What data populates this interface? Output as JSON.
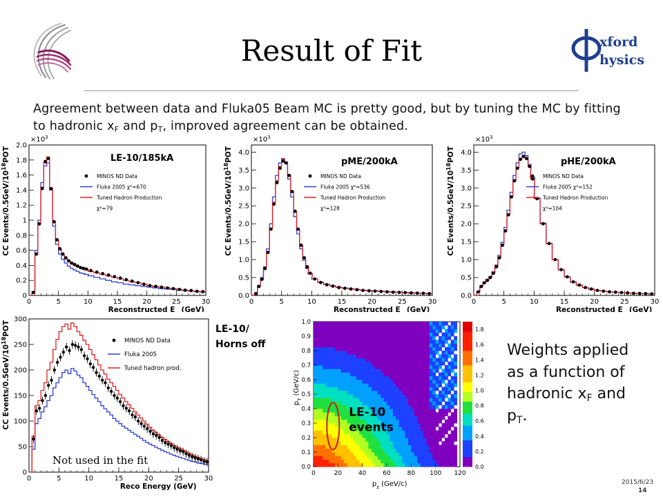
{
  "slide": {
    "title": "Result of Fit",
    "intro": {
      "part1": "Agreement between data and Fluka05 Beam MC is pretty good, but by tuning the MC by fitting to hadronic x",
      "sub1": "F",
      "part2": " and p",
      "sub2": "T",
      "part3": ", improved agreement can be obtained."
    },
    "side_note": {
      "part1": "Weights applied as a function of hadronic x",
      "sub1": "F",
      "part2": " and p",
      "sub2": "T",
      "part3": "."
    },
    "horns_label_line1": "LE-10/",
    "horns_label_line2": "Horns off",
    "date": "2015/6/23",
    "page": "14",
    "logo": {
      "text_line1": "xford",
      "text_line2": "hysics",
      "accent": "#1f3f8f"
    }
  },
  "colors": {
    "data": "#000000",
    "fluka": "#2f3fd0",
    "tuned": "#e02020"
  },
  "chart_data": [
    {
      "id": "le10",
      "type": "line",
      "label": "LE-10/185kA",
      "xlabel": "Reconstructed E",
      "xlabel_sub": "ν",
      "xlabel_unit": " (GeV)",
      "ylabel": "CC Events/0.5GeV/10",
      "ylabel_sup": "18",
      "ylabel_tail": "POT",
      "exponent": "×10",
      "exponent_sup": "3",
      "xlim": [
        0,
        30
      ],
      "ylim": [
        0,
        2.0
      ],
      "xticks": [
        0,
        5,
        10,
        15,
        20,
        25,
        30
      ],
      "yticks": [
        0,
        0.2,
        0.4,
        0.6,
        0.8,
        1.0,
        1.2,
        1.4,
        1.6,
        1.8,
        2.0
      ],
      "ytick_labels": [
        "0",
        "0.2",
        "0.4",
        "0.6",
        "0.8",
        "1",
        "1.2",
        "1.4",
        "1.6",
        "1.8",
        "2.0"
      ],
      "legend": [
        "MINOS ND Data",
        "Fluka 2005 χ²=670",
        "Tuned Hadron Production",
        "χ²=79"
      ],
      "x": [
        0.25,
        0.75,
        1.25,
        1.75,
        2.25,
        2.75,
        3.25,
        3.75,
        4.25,
        4.75,
        5.25,
        5.75,
        6.25,
        6.75,
        7.25,
        7.75,
        8.25,
        8.75,
        9.25,
        9.75,
        10.5,
        11.5,
        12.5,
        13.5,
        14.5,
        15.5,
        16.5,
        17.5,
        18.5,
        19.5,
        20.5,
        21.5,
        22.5,
        23.5,
        24.5,
        25.5,
        26.5,
        27.5,
        28.5,
        29.5
      ],
      "series": [
        {
          "name": "MINOS ND Data",
          "values": [
            0.0,
            0.04,
            0.55,
            0.95,
            1.42,
            1.78,
            1.82,
            1.42,
            0.98,
            0.74,
            0.62,
            0.55,
            0.5,
            0.46,
            0.43,
            0.41,
            0.39,
            0.37,
            0.36,
            0.35,
            0.33,
            0.31,
            0.29,
            0.27,
            0.25,
            0.23,
            0.21,
            0.19,
            0.17,
            0.15,
            0.13,
            0.12,
            0.11,
            0.1,
            0.09,
            0.08,
            0.07,
            0.065,
            0.055,
            0.05
          ]
        },
        {
          "name": "Fluka 2005 χ²=670",
          "values": [
            0.0,
            0.05,
            0.6,
            1.0,
            1.5,
            1.72,
            1.76,
            1.4,
            0.92,
            0.68,
            0.55,
            0.48,
            0.43,
            0.39,
            0.36,
            0.34,
            0.32,
            0.3,
            0.29,
            0.28,
            0.26,
            0.24,
            0.22,
            0.2,
            0.18,
            0.17,
            0.15,
            0.14,
            0.13,
            0.12,
            0.11,
            0.1,
            0.09,
            0.085,
            0.08,
            0.07,
            0.065,
            0.06,
            0.05,
            0.045
          ]
        },
        {
          "name": "Tuned Hadron Production",
          "values": [
            0.0,
            0.04,
            0.56,
            0.96,
            1.44,
            1.76,
            1.84,
            1.42,
            0.97,
            0.73,
            0.61,
            0.54,
            0.49,
            0.45,
            0.42,
            0.4,
            0.38,
            0.37,
            0.35,
            0.34,
            0.32,
            0.3,
            0.28,
            0.26,
            0.24,
            0.22,
            0.2,
            0.18,
            0.17,
            0.15,
            0.13,
            0.12,
            0.11,
            0.1,
            0.09,
            0.08,
            0.07,
            0.06,
            0.055,
            0.05
          ]
        }
      ]
    },
    {
      "id": "pme",
      "type": "line",
      "label": "pME/200kA",
      "xlabel": "Reconstructed E",
      "xlabel_sub": "ν",
      "xlabel_unit": " (GeV)",
      "ylabel": "CC Events/0.5GeV/10",
      "ylabel_sup": "18",
      "ylabel_tail": "POT",
      "exponent": "×10",
      "exponent_sup": "3",
      "xlim": [
        0,
        30
      ],
      "ylim": [
        0,
        4.2
      ],
      "xticks": [
        0,
        5,
        10,
        15,
        20,
        25,
        30
      ],
      "yticks": [
        0,
        0.5,
        1.0,
        1.5,
        2.0,
        2.5,
        3.0,
        3.5,
        4.0
      ],
      "ytick_labels": [
        "0.0",
        "0.5",
        "1.0",
        "1.5",
        "2.0",
        "2.5",
        "3.0",
        "3.5",
        "4.0"
      ],
      "legend": [
        "MINOS ND Data",
        "Fluka 2005 χ²=536",
        "Tuned Hadron Production",
        "χ²=128"
      ],
      "x": [
        0.25,
        0.75,
        1.25,
        1.75,
        2.25,
        2.75,
        3.25,
        3.75,
        4.25,
        4.75,
        5.25,
        5.75,
        6.25,
        6.75,
        7.25,
        7.75,
        8.25,
        8.75,
        9.25,
        9.75,
        10.5,
        11.5,
        12.5,
        13.5,
        14.5,
        15.5,
        16.5,
        17.5,
        18.5,
        19.5,
        20.5,
        21.5,
        22.5,
        23.5,
        24.5,
        25.5,
        26.5,
        27.5,
        28.5,
        29.5
      ],
      "series": [
        {
          "name": "MINOS ND Data",
          "values": [
            0.0,
            0.05,
            0.25,
            0.45,
            0.75,
            1.2,
            1.85,
            2.55,
            3.15,
            3.55,
            3.75,
            3.7,
            3.35,
            2.9,
            2.35,
            1.85,
            1.4,
            1.05,
            0.8,
            0.62,
            0.46,
            0.36,
            0.3,
            0.26,
            0.22,
            0.2,
            0.18,
            0.16,
            0.14,
            0.13,
            0.12,
            0.11,
            0.1,
            0.09,
            0.085,
            0.08,
            0.07,
            0.065,
            0.06,
            0.05
          ]
        },
        {
          "name": "Fluka 2005 χ²=536",
          "values": [
            0.0,
            0.06,
            0.28,
            0.5,
            0.8,
            1.3,
            2.0,
            2.75,
            3.35,
            3.7,
            3.82,
            3.68,
            3.25,
            2.75,
            2.2,
            1.72,
            1.3,
            0.98,
            0.75,
            0.6,
            0.46,
            0.37,
            0.31,
            0.27,
            0.23,
            0.21,
            0.19,
            0.17,
            0.15,
            0.14,
            0.13,
            0.12,
            0.11,
            0.1,
            0.09,
            0.085,
            0.08,
            0.07,
            0.065,
            0.06
          ]
        },
        {
          "name": "Tuned Hadron Production",
          "values": [
            0.0,
            0.05,
            0.26,
            0.46,
            0.76,
            1.22,
            1.88,
            2.6,
            3.2,
            3.6,
            3.8,
            3.72,
            3.36,
            2.9,
            2.34,
            1.84,
            1.39,
            1.04,
            0.79,
            0.61,
            0.46,
            0.36,
            0.3,
            0.26,
            0.22,
            0.2,
            0.18,
            0.16,
            0.14,
            0.13,
            0.12,
            0.11,
            0.1,
            0.09,
            0.085,
            0.08,
            0.07,
            0.065,
            0.06,
            0.05
          ]
        }
      ]
    },
    {
      "id": "phe",
      "type": "line",
      "label": "pHE/200kA",
      "xlabel": "Reconstructed E",
      "xlabel_sub": "ν",
      "xlabel_unit": " (GeV)",
      "ylabel": "CC Events/0.5GeV/10",
      "ylabel_sup": "18",
      "ylabel_tail": "POT",
      "exponent": "×10",
      "exponent_sup": "3",
      "xlim": [
        0,
        30
      ],
      "ylim": [
        0,
        4.2
      ],
      "xticks": [
        0,
        5,
        10,
        15,
        20,
        25,
        30
      ],
      "yticks": [
        0,
        0.5,
        1.0,
        1.5,
        2.0,
        2.5,
        3.0,
        3.5,
        4.0
      ],
      "ytick_labels": [
        "0.0",
        "0.5",
        "1.0",
        "1.5",
        "2.0",
        "2.5",
        "3.0",
        "3.5",
        "4.0"
      ],
      "legend": [
        "MINOS ND Data",
        "Fluka 2005 χ²=152",
        "Tuned Hadron Production",
        "χ²=104"
      ],
      "x": [
        0.25,
        0.75,
        1.25,
        1.75,
        2.25,
        2.75,
        3.25,
        3.75,
        4.25,
        4.75,
        5.25,
        5.75,
        6.25,
        6.75,
        7.25,
        7.75,
        8.25,
        8.75,
        9.25,
        9.75,
        10.5,
        11.5,
        12.5,
        13.5,
        14.5,
        15.5,
        16.5,
        17.5,
        18.5,
        19.5,
        20.5,
        21.5,
        22.5,
        23.5,
        24.5,
        25.5,
        26.5,
        27.5,
        28.5,
        29.5
      ],
      "series": [
        {
          "name": "MINOS ND Data",
          "values": [
            0.0,
            0.1,
            0.25,
            0.35,
            0.42,
            0.5,
            0.62,
            0.8,
            1.05,
            1.4,
            1.8,
            2.25,
            2.75,
            3.2,
            3.55,
            3.8,
            3.88,
            3.82,
            3.6,
            3.25,
            2.7,
            2.0,
            1.45,
            1.0,
            0.72,
            0.52,
            0.38,
            0.29,
            0.22,
            0.18,
            0.14,
            0.12,
            0.1,
            0.09,
            0.08,
            0.07,
            0.06,
            0.055,
            0.05,
            0.045
          ]
        },
        {
          "name": "Fluka 2005 χ²=152",
          "values": [
            0.0,
            0.11,
            0.27,
            0.37,
            0.45,
            0.53,
            0.66,
            0.85,
            1.12,
            1.48,
            1.9,
            2.38,
            2.88,
            3.35,
            3.7,
            3.95,
            4.0,
            3.9,
            3.66,
            3.3,
            2.72,
            2.02,
            1.45,
            1.0,
            0.71,
            0.51,
            0.37,
            0.28,
            0.22,
            0.17,
            0.14,
            0.12,
            0.1,
            0.09,
            0.08,
            0.07,
            0.06,
            0.055,
            0.05,
            0.045
          ]
        },
        {
          "name": "Tuned Hadron Production",
          "values": [
            0.0,
            0.1,
            0.25,
            0.35,
            0.43,
            0.51,
            0.63,
            0.81,
            1.06,
            1.42,
            1.82,
            2.28,
            2.78,
            3.22,
            3.58,
            3.82,
            3.9,
            3.83,
            3.6,
            3.26,
            2.7,
            2.0,
            1.44,
            1.0,
            0.72,
            0.52,
            0.38,
            0.29,
            0.22,
            0.18,
            0.14,
            0.12,
            0.1,
            0.09,
            0.08,
            0.07,
            0.06,
            0.055,
            0.05,
            0.045
          ]
        }
      ]
    },
    {
      "id": "horns",
      "type": "line",
      "xlabel": "Reco Energy (GeV)",
      "ylabel": "CC Events/0.5GeV/10",
      "ylabel_sup": "18",
      "ylabel_tail": "POT",
      "xlim": [
        0,
        30
      ],
      "ylim": [
        0,
        300
      ],
      "xticks": [
        0,
        5,
        10,
        15,
        20,
        25,
        30
      ],
      "yticks": [
        0,
        50,
        100,
        150,
        200,
        250,
        300
      ],
      "ytick_labels": [
        "0",
        "50",
        "100",
        "150",
        "200",
        "250",
        "300"
      ],
      "legend": [
        "MINOS ND Data",
        "Fluka 2005",
        "Tuned hadron prod."
      ],
      "annotation": "Not used in the fit",
      "x": [
        0.25,
        0.75,
        1.25,
        1.75,
        2.25,
        2.75,
        3.25,
        3.75,
        4.25,
        4.75,
        5.25,
        5.75,
        6.25,
        6.75,
        7.25,
        7.75,
        8.25,
        8.75,
        9.25,
        9.75,
        10.25,
        10.75,
        11.25,
        11.75,
        12.25,
        12.75,
        13.25,
        13.75,
        14.25,
        14.75,
        15.25,
        15.75,
        16.25,
        16.75,
        17.25,
        17.75,
        18.25,
        18.75,
        19.25,
        19.75,
        20.25,
        20.75,
        21.25,
        21.75,
        22.25,
        22.75,
        23.25,
        23.75,
        24.25,
        24.75,
        25.25,
        25.75,
        26.25,
        26.75,
        27.25,
        27.75,
        28.25,
        28.75,
        29.25,
        29.75
      ],
      "series": [
        {
          "name": "MINOS ND Data",
          "values": [
            0,
            65,
            120,
            125,
            140,
            150,
            170,
            180,
            200,
            215,
            225,
            235,
            245,
            238,
            250,
            248,
            245,
            240,
            228,
            222,
            212,
            205,
            195,
            188,
            180,
            175,
            165,
            158,
            150,
            145,
            138,
            130,
            125,
            120,
            112,
            108,
            100,
            95,
            90,
            85,
            80,
            75,
            72,
            68,
            62,
            58,
            55,
            52,
            48,
            45,
            42,
            40,
            36,
            33,
            30,
            28,
            26,
            24,
            21,
            20
          ]
        },
        {
          "name": "Fluka 2005",
          "values": [
            0,
            45,
            95,
            105,
            118,
            128,
            140,
            150,
            165,
            175,
            185,
            195,
            200,
            193,
            203,
            198,
            190,
            185,
            175,
            168,
            160,
            152,
            145,
            138,
            130,
            124,
            118,
            112,
            105,
            100,
            95,
            90,
            86,
            82,
            78,
            74,
            70,
            66,
            62,
            58,
            55,
            52,
            49,
            46,
            43,
            40,
            38,
            35,
            33,
            31,
            29,
            27,
            25,
            23,
            21,
            20,
            18,
            17,
            16,
            15
          ]
        },
        {
          "name": "Tuned hadron prod.",
          "values": [
            0,
            70,
            130,
            140,
            160,
            175,
            200,
            215,
            240,
            260,
            275,
            285,
            290,
            280,
            292,
            285,
            275,
            268,
            258,
            250,
            240,
            230,
            220,
            210,
            200,
            192,
            182,
            175,
            168,
            160,
            152,
            145,
            138,
            132,
            125,
            118,
            112,
            106,
            100,
            94,
            88,
            82,
            78,
            73,
            68,
            64,
            60,
            56,
            52,
            49,
            46,
            43,
            40,
            37,
            34,
            31,
            29,
            27,
            25,
            23
          ]
        }
      ]
    },
    {
      "id": "weights",
      "type": "heatmap",
      "xlabel": "p",
      "xlabel_sub": "z",
      "xlabel_unit": " (GeV/c)",
      "ylabel": "p",
      "ylabel_sub": "T",
      "ylabel_unit": " (GeV/c)",
      "xlim": [
        0,
        120
      ],
      "ylim": [
        0,
        1.0
      ],
      "xticks": [
        0,
        20,
        40,
        60,
        80,
        100,
        120
      ],
      "yticks": [
        0,
        0.1,
        0.2,
        0.3,
        0.4,
        0.5,
        0.6,
        0.7,
        0.8,
        0.9,
        1.0
      ],
      "ytick_labels": [
        "0.0",
        "0.1",
        "0.2",
        "0.3",
        "0.4",
        "0.5",
        "0.6",
        "0.7",
        "0.8",
        "0.9",
        "1.0"
      ],
      "zlim": [
        0.0,
        1.9
      ],
      "zticks": [
        0.0,
        0.2,
        0.4,
        0.6,
        0.8,
        1.0,
        1.2,
        1.4,
        1.6,
        1.8
      ],
      "ztick_labels": [
        "0.0",
        "0.2",
        "0.4",
        "0.6",
        "0.8",
        "1.0",
        "1.2",
        "1.4",
        "1.6",
        "1.8"
      ],
      "label": "LE-10 events",
      "label_line1": "LE-10",
      "label_line2": "events"
    }
  ]
}
